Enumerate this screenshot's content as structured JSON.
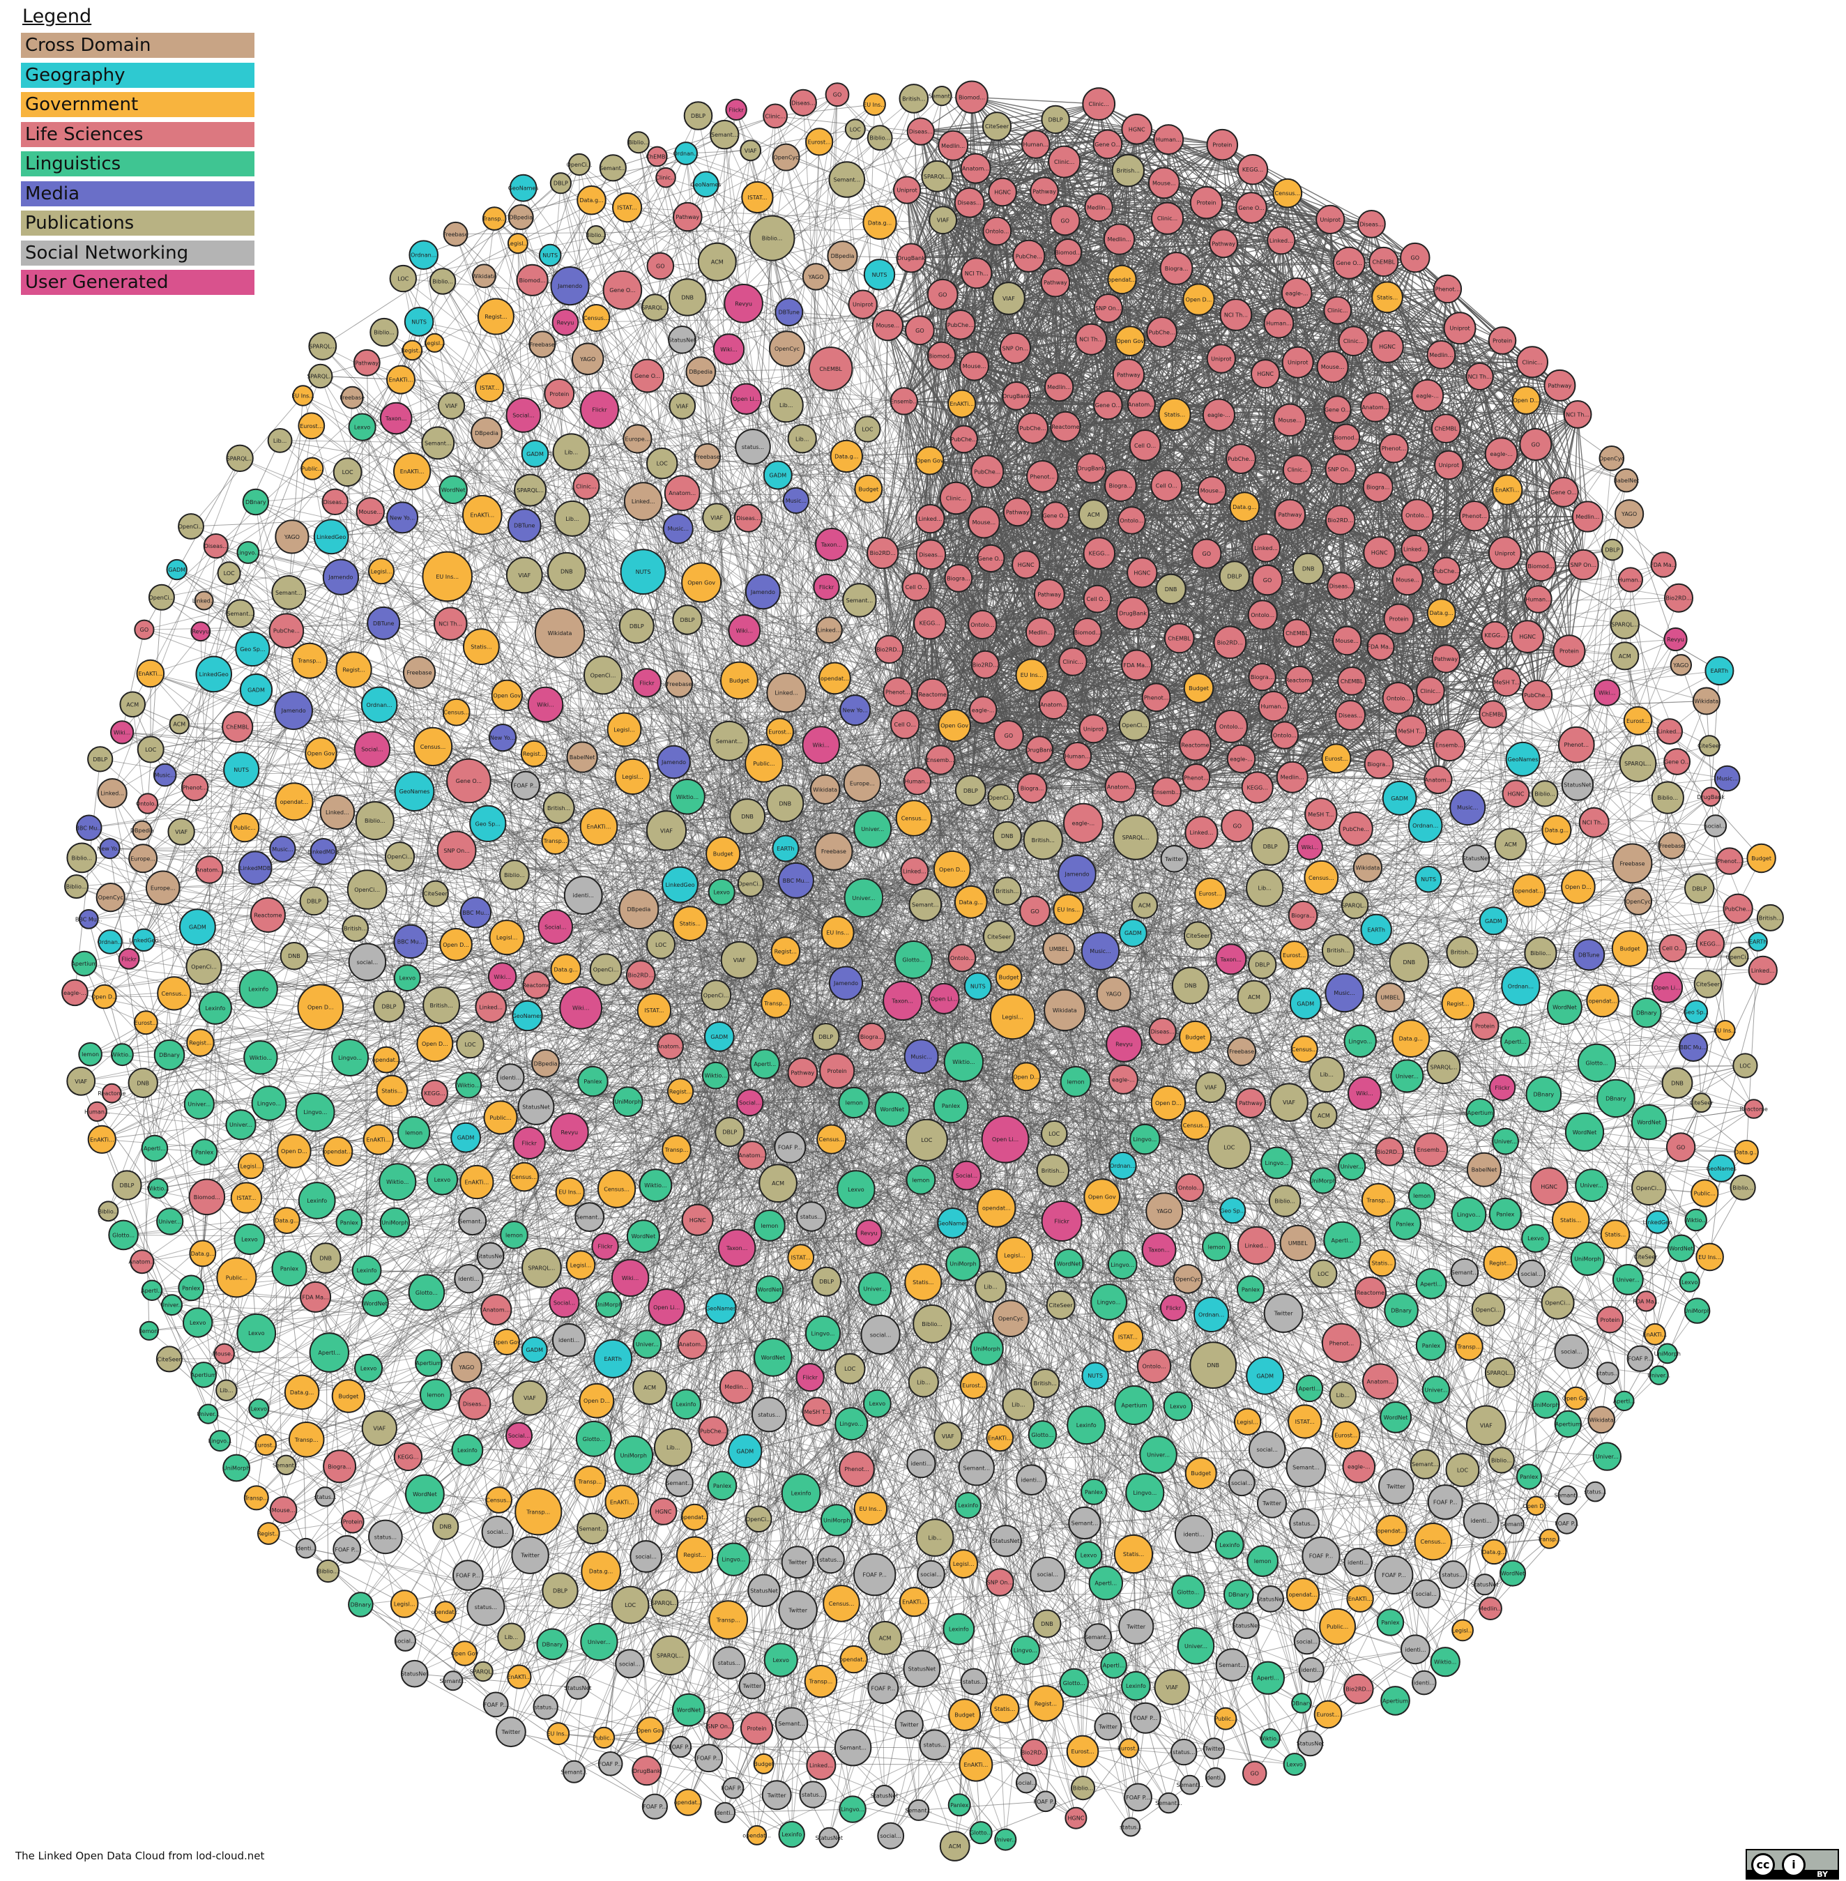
{
  "legend": {
    "title": "Legend",
    "items": [
      {
        "label": "Cross Domain",
        "color": "#c8a485"
      },
      {
        "label": "Geography",
        "color": "#2ec9d1"
      },
      {
        "label": "Government",
        "color": "#f8b43e"
      },
      {
        "label": "Life Sciences",
        "color": "#dc7880"
      },
      {
        "label": "Linguistics",
        "color": "#3fc592"
      },
      {
        "label": "Media",
        "color": "#6a6fc8"
      },
      {
        "label": "Publications",
        "color": "#b8b283"
      },
      {
        "label": "Social Networking",
        "color": "#b4b4b4"
      },
      {
        "label": "User Generated",
        "color": "#d9528d"
      }
    ]
  },
  "caption": "The Linked Open Data Cloud from lod-cloud.net",
  "license": {
    "cc_icon": "cc-icon",
    "by_icon": "attribution-icon",
    "cc_glyph": "cc",
    "by_glyph": "i",
    "by_label": "BY"
  },
  "diagram": {
    "edge_color": "#555555",
    "node_stroke": "#222222",
    "node_labels": {
      "Life Sciences": [
        "Biogra...",
        "ChEMBL",
        "DrugBank",
        "Gene O...",
        "Linked...",
        "PubChe...",
        "Uniprot",
        "Bio2RD...",
        "Diseas...",
        "Protein",
        "Human...",
        "Ontolo...",
        "SNP On...",
        "Medlin...",
        "Cell O...",
        "Clinic...",
        "FDA Ma...",
        "Anatom...",
        "eagle-...",
        "HGNC",
        "Mouse...",
        "NCI Th...",
        "Ensemb...",
        "Phenot...",
        "Biomod...",
        "KEGG...",
        "Reactome",
        "GO",
        "MeSH T...",
        "Pathway"
      ],
      "Government": [
        "Open D...",
        "opendat...",
        "EnAKTi...",
        "Eurost...",
        "Data.g...",
        "Legisl...",
        "Statis...",
        "Census...",
        "ISTAT...",
        "Open Gov",
        "Budget",
        "Transp...",
        "EU Ins...",
        "Regist...",
        "Public..."
      ],
      "Linguistics": [
        "Apertium",
        "Apertl...",
        "Univer...",
        "Lexvo",
        "WordNet",
        "Glotto...",
        "lemon",
        "Lingvo...",
        "DBnary",
        "Panlex",
        "Wiktio...",
        "UniMorph",
        "Lexinfo"
      ],
      "Publications": [
        "DBLP",
        "Lib...",
        "VIAF",
        "DNB",
        "Biblio...",
        "OpenCi...",
        "Semant...",
        "SPARQL...",
        "ACM",
        "CiteSeer",
        "LOC",
        "British..."
      ],
      "Cross Domain": [
        "DBpedia",
        "Wikidata",
        "YAGO",
        "Freebase",
        "OpenCyc",
        "BabelNet",
        "UMBEL",
        "Linked...",
        "Europe..."
      ],
      "Geography": [
        "GeoNames",
        "LinkedGeo",
        "NUTS",
        "Ordnan...",
        "GADM",
        "EARTh",
        "Geo Sp..."
      ],
      "Media": [
        "BBC Mu...",
        "DBTune",
        "LinkedMDB",
        "New Yo...",
        "Music...",
        "Jamendo"
      ],
      "Social Networking": [
        "status...",
        "Twitter",
        "identi...",
        "FOAF P...",
        "Semant...",
        "StatusNet",
        "social..."
      ],
      "User Generated": [
        "Flickr",
        "Revyu",
        "Open Li...",
        "Wiki...",
        "Social...",
        "Taxon..."
      ]
    }
  }
}
